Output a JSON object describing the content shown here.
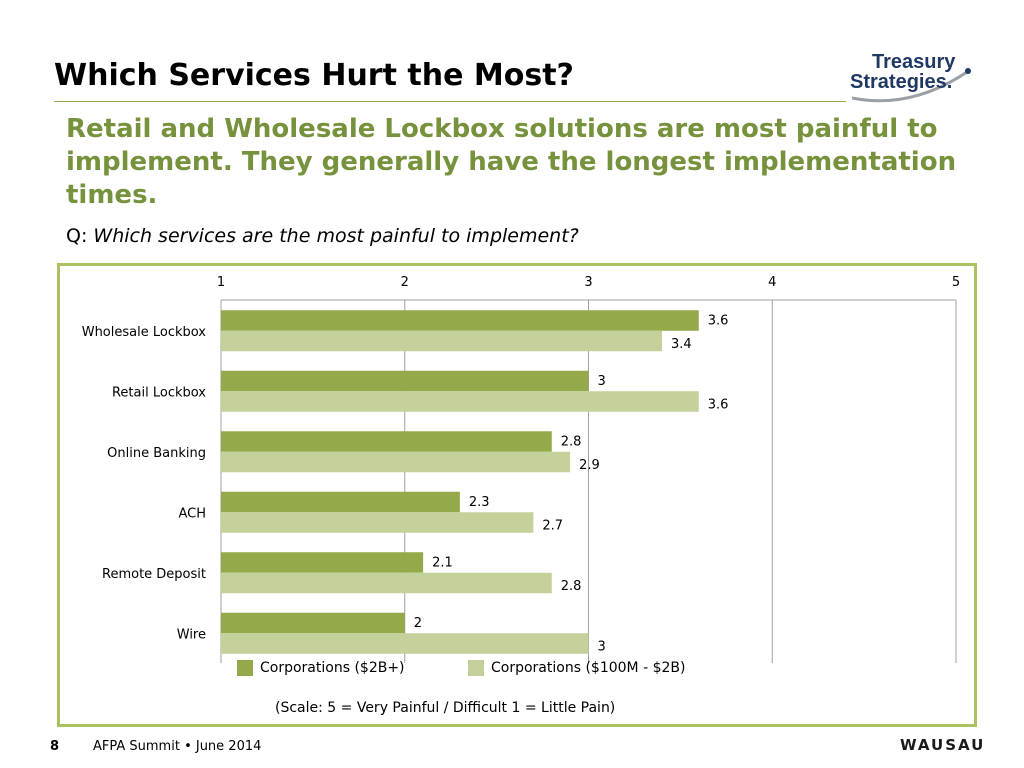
{
  "slide": {
    "title": "Which Services Hurt the Most?",
    "subtitle": "Retail and Wholesale Lockbox solutions are most painful to implement. They generally have the longest implementation times.",
    "question_prefix": "Q:",
    "question_text": "Which services are the most painful to implement?",
    "scale_note": "(Scale: 5 = Very Painful / Difficult 1 = Little Pain)",
    "page_number": "8",
    "footer_text": "AFPA Summit • June 2014",
    "logo_line1": "Treasury",
    "logo_line2": "Strategies.",
    "footer_logo": "WAUSAU"
  },
  "colors": {
    "series1": "#94a94a",
    "series2": "#c4d19a",
    "accent": "#76923c",
    "frame": "#a9c25f",
    "logo_navy": "#1f3864"
  },
  "chart_data": {
    "type": "bar",
    "orientation": "horizontal",
    "categories": [
      "Wholesale Lockbox",
      "Retail Lockbox",
      "Online Banking",
      "ACH",
      "Remote Deposit",
      "Wire"
    ],
    "series": [
      {
        "name": "Corporations ($2B+)",
        "values": [
          3.6,
          3,
          2.8,
          2.3,
          2.1,
          2
        ]
      },
      {
        "name": "Corporations ($100M - $2B)",
        "values": [
          3.4,
          3.6,
          2.9,
          2.7,
          2.8,
          3
        ]
      }
    ],
    "value_labels": [
      [
        "3.6",
        "3",
        "2.8",
        "2.3",
        "2.1",
        "2"
      ],
      [
        "3.4",
        "3.6",
        "2.9",
        "2.7",
        "2.8",
        "3"
      ]
    ],
    "xlim": [
      1,
      5
    ],
    "x_ticks": [
      "1",
      "2",
      "3",
      "4",
      "5"
    ],
    "tick_position": "top",
    "grid": true,
    "legend_position": "bottom"
  }
}
